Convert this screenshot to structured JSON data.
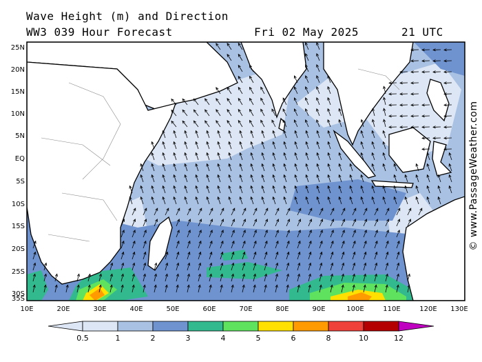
{
  "header": {
    "title": "Wave Height (m) and Direction",
    "model": "WW3 039 Hour Forecast",
    "date": "Fri 02 May 2025",
    "time": "21 UTC"
  },
  "credit": "© www.PassageWeather.com",
  "axes": {
    "lat_labels": [
      "25N",
      "20N",
      "15N",
      "10N",
      "5N",
      "EQ",
      "5S",
      "10S",
      "15S",
      "20S",
      "25S",
      "30S",
      "35S"
    ],
    "lon_labels": [
      "10E",
      "20E",
      "30E",
      "40E",
      "50E",
      "60E",
      "70E",
      "80E",
      "90E",
      "100E",
      "110E",
      "120E",
      "130E"
    ]
  },
  "legend": {
    "labels": [
      "0.5",
      "1",
      "2",
      "3",
      "4",
      "5",
      "6",
      "8",
      "10",
      "12"
    ],
    "colors": [
      "#dde6f4",
      "#a9c1e3",
      "#6f93cf",
      "#33b98e",
      "#5fe35f",
      "#ffe000",
      "#ff9a00",
      "#f0403a",
      "#b40000",
      "#c000c0"
    ]
  },
  "map_colors": {
    "land": "#ffffff",
    "sea_calm": "#dde6f4",
    "sea_1": "#a9c1e3",
    "sea_2": "#6f93cf",
    "sea_3": "#33b98e",
    "sea_4": "#5fe35f",
    "sea_5": "#ffe000",
    "sea_6": "#ff9a00"
  }
}
